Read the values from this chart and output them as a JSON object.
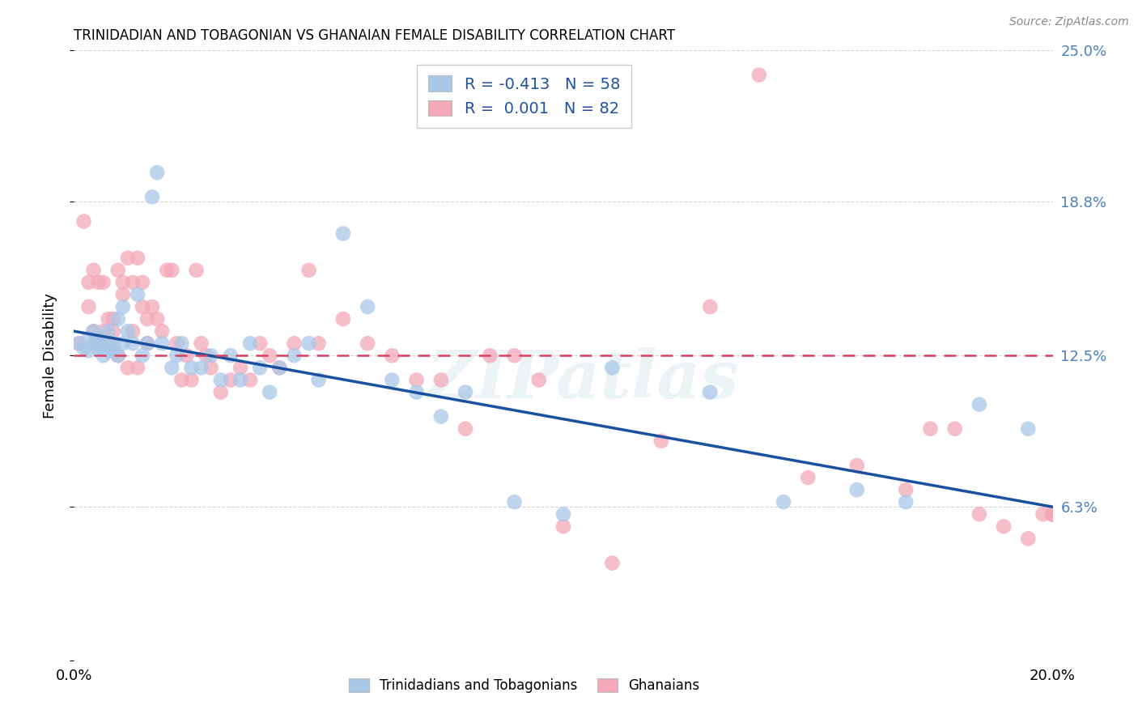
{
  "title": "TRINIDADIAN AND TOBAGONIAN VS GHANAIAN FEMALE DISABILITY CORRELATION CHART",
  "source": "Source: ZipAtlas.com",
  "ylabel": "Female Disability",
  "x_min": 0.0,
  "x_max": 0.2,
  "y_min": 0.0,
  "y_max": 0.25,
  "yticks": [
    0.0,
    0.063,
    0.125,
    0.188,
    0.25
  ],
  "ytick_labels": [
    "",
    "6.3%",
    "12.5%",
    "18.8%",
    "25.0%"
  ],
  "xticks": [
    0.0,
    0.05,
    0.1,
    0.15,
    0.2
  ],
  "xtick_labels": [
    "0.0%",
    "",
    "",
    "",
    "20.0%"
  ],
  "blue_color": "#a8c8e8",
  "pink_color": "#f4a8b8",
  "blue_line_color": "#1a50a0",
  "pink_line_color": "#d84060",
  "watermark": "ZIPatlas",
  "blue_line_x0": 0.0,
  "blue_line_y0": 0.135,
  "blue_line_x1": 0.2,
  "blue_line_y1": 0.063,
  "pink_line_x0": 0.0,
  "pink_line_y0": 0.125,
  "pink_line_x1": 0.2,
  "pink_line_y1": 0.125,
  "blue_scatter_x": [
    0.001,
    0.002,
    0.003,
    0.003,
    0.004,
    0.004,
    0.005,
    0.005,
    0.005,
    0.006,
    0.006,
    0.007,
    0.007,
    0.008,
    0.008,
    0.009,
    0.009,
    0.01,
    0.01,
    0.011,
    0.012,
    0.013,
    0.014,
    0.015,
    0.016,
    0.017,
    0.018,
    0.02,
    0.021,
    0.022,
    0.024,
    0.026,
    0.028,
    0.03,
    0.032,
    0.034,
    0.036,
    0.038,
    0.04,
    0.042,
    0.045,
    0.048,
    0.05,
    0.055,
    0.06,
    0.065,
    0.07,
    0.075,
    0.08,
    0.09,
    0.1,
    0.11,
    0.13,
    0.145,
    0.16,
    0.17,
    0.185,
    0.195
  ],
  "blue_scatter_y": [
    0.13,
    0.128,
    0.127,
    0.132,
    0.13,
    0.135,
    0.128,
    0.13,
    0.132,
    0.125,
    0.13,
    0.127,
    0.135,
    0.128,
    0.13,
    0.125,
    0.14,
    0.13,
    0.145,
    0.135,
    0.13,
    0.15,
    0.125,
    0.13,
    0.19,
    0.2,
    0.13,
    0.12,
    0.125,
    0.13,
    0.12,
    0.12,
    0.125,
    0.115,
    0.125,
    0.115,
    0.13,
    0.12,
    0.11,
    0.12,
    0.125,
    0.13,
    0.115,
    0.175,
    0.145,
    0.115,
    0.11,
    0.1,
    0.11,
    0.065,
    0.06,
    0.12,
    0.11,
    0.065,
    0.07,
    0.065,
    0.105,
    0.095
  ],
  "pink_scatter_x": [
    0.001,
    0.002,
    0.003,
    0.003,
    0.004,
    0.004,
    0.005,
    0.005,
    0.006,
    0.006,
    0.007,
    0.007,
    0.008,
    0.008,
    0.009,
    0.009,
    0.01,
    0.01,
    0.011,
    0.011,
    0.012,
    0.012,
    0.013,
    0.013,
    0.014,
    0.014,
    0.015,
    0.015,
    0.016,
    0.017,
    0.018,
    0.019,
    0.02,
    0.021,
    0.022,
    0.023,
    0.024,
    0.025,
    0.026,
    0.027,
    0.028,
    0.03,
    0.032,
    0.034,
    0.036,
    0.038,
    0.04,
    0.042,
    0.045,
    0.048,
    0.05,
    0.055,
    0.06,
    0.065,
    0.07,
    0.075,
    0.08,
    0.085,
    0.09,
    0.095,
    0.1,
    0.11,
    0.12,
    0.13,
    0.14,
    0.15,
    0.16,
    0.17,
    0.175,
    0.18,
    0.185,
    0.19,
    0.195,
    0.198,
    0.2,
    0.2,
    0.2,
    0.2,
    0.2,
    0.2,
    0.2,
    0.2
  ],
  "pink_scatter_y": [
    0.13,
    0.18,
    0.155,
    0.145,
    0.135,
    0.16,
    0.13,
    0.155,
    0.135,
    0.155,
    0.13,
    0.14,
    0.135,
    0.14,
    0.125,
    0.16,
    0.15,
    0.155,
    0.165,
    0.12,
    0.155,
    0.135,
    0.165,
    0.12,
    0.145,
    0.155,
    0.13,
    0.14,
    0.145,
    0.14,
    0.135,
    0.16,
    0.16,
    0.13,
    0.115,
    0.125,
    0.115,
    0.16,
    0.13,
    0.125,
    0.12,
    0.11,
    0.115,
    0.12,
    0.115,
    0.13,
    0.125,
    0.12,
    0.13,
    0.16,
    0.13,
    0.14,
    0.13,
    0.125,
    0.115,
    0.115,
    0.095,
    0.125,
    0.125,
    0.115,
    0.055,
    0.04,
    0.09,
    0.145,
    0.24,
    0.075,
    0.08,
    0.07,
    0.095,
    0.095,
    0.06,
    0.055,
    0.05,
    0.06,
    0.06,
    0.06,
    0.06,
    0.06,
    0.06,
    0.06,
    0.06,
    0.06
  ],
  "background_color": "#ffffff",
  "grid_color": "#cccccc"
}
